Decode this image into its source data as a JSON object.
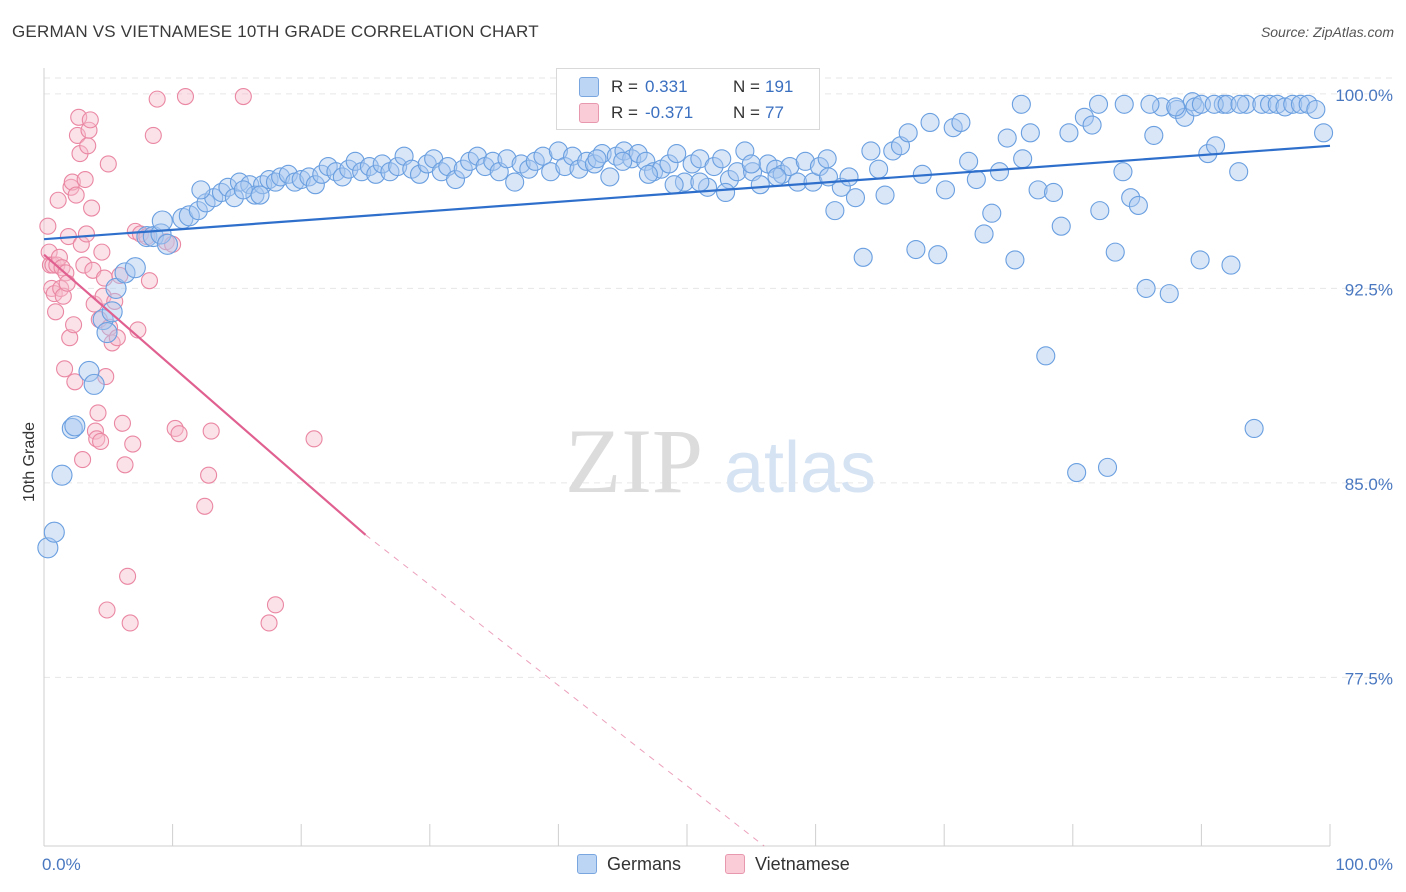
{
  "title": "GERMAN VS VIETNAMESE 10TH GRADE CORRELATION CHART",
  "source": "Source: ZipAtlas.com",
  "watermark": {
    "zip": "ZIP",
    "atlas": "atlas"
  },
  "legend": {
    "rows": [
      {
        "r_label": "R =",
        "r_value": "0.331",
        "n_label": "N =",
        "n_value": "191"
      },
      {
        "r_label": "R =",
        "r_value": "-0.371",
        "n_label": "N =",
        "n_value": "77"
      }
    ]
  },
  "bottom_legend": [
    {
      "label": "Germans"
    },
    {
      "label": "Vietnamese"
    }
  ],
  "colors": {
    "germans_fill": "#a9c8f0",
    "germans_stroke": "#6a9fe0",
    "germans_line": "#2f6fcc",
    "viet_fill": "#f6bccb",
    "viet_stroke": "#ea87a3",
    "viet_line": "#e06090",
    "grid": "#e6e6e6",
    "tick_text": "#4a78c0"
  },
  "chart_data": {
    "type": "scatter",
    "title": "GERMAN VS VIETNAMESE 10TH GRADE CORRELATION CHART",
    "xlabel": "",
    "ylabel": "10th Grade",
    "xlim": [
      0,
      100
    ],
    "ylim": [
      71,
      101
    ],
    "x_tick_labels": [
      "0.0%",
      "100.0%"
    ],
    "y_ticks": [
      77.5,
      85.0,
      92.5,
      100.0
    ],
    "y_tick_labels": [
      "77.5%",
      "85.0%",
      "92.5%",
      "100.0%"
    ],
    "grid": true,
    "series": [
      {
        "name": "Germans",
        "r": 0.331,
        "n": 191,
        "trend": {
          "x": [
            0,
            100
          ],
          "y": [
            94.4,
            98.0
          ]
        },
        "points": [
          [
            0.3,
            82.5
          ],
          [
            0.8,
            83.1
          ],
          [
            1.4,
            85.3
          ],
          [
            2.2,
            87.1
          ],
          [
            2.4,
            87.2
          ],
          [
            3.5,
            89.3
          ],
          [
            3.9,
            88.8
          ],
          [
            4.6,
            91.3
          ],
          [
            4.9,
            90.8
          ],
          [
            5.6,
            92.5
          ],
          [
            6.3,
            93.1
          ],
          [
            7.1,
            93.3
          ],
          [
            5.3,
            91.6
          ],
          [
            8.0,
            94.5
          ],
          [
            8.5,
            94.5
          ],
          [
            9.1,
            94.6
          ],
          [
            9.6,
            94.2
          ],
          [
            9.2,
            95.1
          ],
          [
            10.8,
            95.2
          ],
          [
            11.3,
            95.3
          ],
          [
            12.0,
            95.5
          ],
          [
            12.6,
            95.8
          ],
          [
            13.2,
            96.0
          ],
          [
            13.8,
            96.2
          ],
          [
            14.3,
            96.4
          ],
          [
            14.8,
            96.0
          ],
          [
            15.2,
            96.6
          ],
          [
            16.0,
            96.5
          ],
          [
            16.4,
            96.1
          ],
          [
            17.0,
            96.5
          ],
          [
            17.5,
            96.7
          ],
          [
            18.0,
            96.6
          ],
          [
            18.4,
            96.8
          ],
          [
            19.0,
            96.9
          ],
          [
            19.5,
            96.6
          ],
          [
            20.0,
            96.7
          ],
          [
            20.6,
            96.8
          ],
          [
            21.1,
            96.5
          ],
          [
            21.6,
            96.9
          ],
          [
            22.1,
            97.2
          ],
          [
            22.7,
            97.0
          ],
          [
            23.2,
            96.8
          ],
          [
            23.7,
            97.1
          ],
          [
            24.2,
            97.4
          ],
          [
            24.7,
            97.0
          ],
          [
            25.3,
            97.2
          ],
          [
            25.8,
            96.9
          ],
          [
            26.3,
            97.3
          ],
          [
            26.9,
            97.0
          ],
          [
            27.5,
            97.2
          ],
          [
            28.0,
            97.6
          ],
          [
            28.6,
            97.1
          ],
          [
            29.2,
            96.9
          ],
          [
            29.8,
            97.3
          ],
          [
            30.3,
            97.5
          ],
          [
            30.9,
            97.0
          ],
          [
            31.4,
            97.2
          ],
          [
            32.0,
            96.7
          ],
          [
            32.6,
            97.1
          ],
          [
            33.1,
            97.4
          ],
          [
            33.7,
            97.6
          ],
          [
            34.3,
            97.2
          ],
          [
            34.9,
            97.4
          ],
          [
            35.4,
            97.0
          ],
          [
            36.0,
            97.5
          ],
          [
            36.6,
            96.6
          ],
          [
            37.1,
            97.3
          ],
          [
            37.7,
            97.1
          ],
          [
            38.2,
            97.4
          ],
          [
            38.8,
            97.6
          ],
          [
            39.4,
            97.0
          ],
          [
            40.0,
            97.8
          ],
          [
            40.5,
            97.2
          ],
          [
            41.1,
            97.6
          ],
          [
            41.6,
            97.1
          ],
          [
            42.2,
            97.4
          ],
          [
            42.8,
            97.3
          ],
          [
            43.4,
            97.7
          ],
          [
            44.0,
            96.8
          ],
          [
            44.5,
            97.6
          ],
          [
            45.1,
            97.8
          ],
          [
            45.7,
            97.5
          ],
          [
            46.2,
            97.7
          ],
          [
            46.8,
            97.4
          ],
          [
            47.4,
            97.0
          ],
          [
            48.0,
            97.1
          ],
          [
            48.6,
            97.3
          ],
          [
            49.2,
            97.7
          ],
          [
            49.8,
            96.6
          ],
          [
            50.4,
            97.3
          ],
          [
            51.0,
            97.5
          ],
          [
            51.6,
            96.4
          ],
          [
            52.1,
            97.2
          ],
          [
            52.7,
            97.5
          ],
          [
            53.3,
            96.7
          ],
          [
            53.9,
            97.0
          ],
          [
            54.5,
            97.8
          ],
          [
            55.1,
            97.0
          ],
          [
            55.7,
            96.5
          ],
          [
            56.3,
            97.3
          ],
          [
            56.9,
            97.1
          ],
          [
            57.4,
            96.9
          ],
          [
            58.0,
            97.2
          ],
          [
            58.6,
            96.6
          ],
          [
            59.2,
            97.4
          ],
          [
            59.8,
            96.6
          ],
          [
            60.3,
            97.2
          ],
          [
            60.9,
            97.5
          ],
          [
            61.5,
            95.5
          ],
          [
            62.0,
            96.4
          ],
          [
            62.6,
            96.8
          ],
          [
            63.1,
            96.0
          ],
          [
            63.7,
            93.7
          ],
          [
            64.3,
            97.8
          ],
          [
            64.9,
            97.1
          ],
          [
            65.4,
            96.1
          ],
          [
            66.0,
            97.8
          ],
          [
            66.6,
            98.0
          ],
          [
            67.2,
            98.5
          ],
          [
            67.8,
            94.0
          ],
          [
            68.3,
            96.9
          ],
          [
            68.9,
            98.9
          ],
          [
            69.5,
            93.8
          ],
          [
            70.1,
            96.3
          ],
          [
            70.7,
            98.7
          ],
          [
            71.3,
            98.9
          ],
          [
            71.9,
            97.4
          ],
          [
            72.5,
            96.7
          ],
          [
            73.1,
            94.6
          ],
          [
            73.7,
            95.4
          ],
          [
            74.3,
            97.0
          ],
          [
            74.9,
            98.3
          ],
          [
            75.5,
            93.6
          ],
          [
            76.1,
            97.5
          ],
          [
            76.7,
            98.5
          ],
          [
            77.3,
            96.3
          ],
          [
            77.9,
            89.9
          ],
          [
            78.5,
            96.2
          ],
          [
            79.1,
            94.9
          ],
          [
            79.7,
            98.5
          ],
          [
            80.3,
            85.4
          ],
          [
            80.9,
            99.1
          ],
          [
            81.5,
            98.8
          ],
          [
            82.1,
            95.5
          ],
          [
            82.7,
            85.6
          ],
          [
            83.3,
            93.9
          ],
          [
            83.9,
            97.0
          ],
          [
            84.5,
            96.0
          ],
          [
            85.1,
            95.7
          ],
          [
            85.7,
            92.5
          ],
          [
            86.3,
            98.4
          ],
          [
            86.9,
            99.5
          ],
          [
            87.5,
            92.3
          ],
          [
            88.1,
            99.4
          ],
          [
            88.7,
            99.1
          ],
          [
            89.3,
            99.7
          ],
          [
            89.9,
            93.6
          ],
          [
            90.5,
            97.7
          ],
          [
            91.1,
            98.0
          ],
          [
            91.7,
            99.6
          ],
          [
            92.3,
            93.4
          ],
          [
            92.9,
            97.0
          ],
          [
            93.5,
            99.6
          ],
          [
            94.1,
            87.1
          ],
          [
            94.7,
            99.6
          ],
          [
            95.3,
            99.6
          ],
          [
            95.9,
            99.6
          ],
          [
            96.5,
            99.5
          ],
          [
            97.1,
            99.6
          ],
          [
            97.7,
            99.6
          ],
          [
            98.3,
            99.6
          ],
          [
            98.9,
            99.4
          ],
          [
            99.5,
            98.5
          ],
          [
            88.0,
            99.5
          ],
          [
            89.5,
            99.5
          ],
          [
            90.0,
            99.6
          ],
          [
            91.0,
            99.6
          ],
          [
            92.0,
            99.6
          ],
          [
            93.0,
            99.6
          ],
          [
            84.0,
            99.6
          ],
          [
            86.0,
            99.6
          ],
          [
            82.0,
            99.6
          ],
          [
            76.0,
            99.6
          ],
          [
            61.0,
            96.8
          ],
          [
            57.0,
            96.8
          ],
          [
            55.0,
            97.3
          ],
          [
            53.0,
            96.2
          ],
          [
            51.0,
            96.6
          ],
          [
            49.0,
            96.5
          ],
          [
            47.0,
            96.9
          ],
          [
            45.0,
            97.4
          ],
          [
            43.0,
            97.5
          ],
          [
            15.5,
            96.3
          ],
          [
            16.8,
            96.1
          ],
          [
            12.2,
            96.3
          ]
        ]
      },
      {
        "name": "Vietnamese",
        "r": -0.371,
        "n": 77,
        "trend": {
          "x": [
            0,
            25
          ],
          "y": [
            93.8,
            83.0
          ],
          "dashed_to": {
            "x": 56,
            "y": 71
          }
        },
        "points": [
          [
            0.3,
            94.9
          ],
          [
            0.4,
            93.9
          ],
          [
            0.5,
            93.4
          ],
          [
            0.6,
            92.5
          ],
          [
            0.7,
            93.4
          ],
          [
            0.8,
            92.3
          ],
          [
            0.9,
            91.6
          ],
          [
            1.0,
            93.4
          ],
          [
            1.1,
            95.9
          ],
          [
            1.2,
            93.7
          ],
          [
            1.3,
            92.5
          ],
          [
            1.4,
            93.3
          ],
          [
            1.5,
            92.2
          ],
          [
            1.6,
            89.4
          ],
          [
            1.7,
            93.1
          ],
          [
            1.8,
            92.7
          ],
          [
            1.9,
            94.5
          ],
          [
            2.0,
            90.6
          ],
          [
            2.1,
            96.4
          ],
          [
            2.2,
            96.6
          ],
          [
            2.3,
            91.1
          ],
          [
            2.4,
            88.9
          ],
          [
            2.5,
            96.1
          ],
          [
            2.6,
            98.4
          ],
          [
            2.7,
            99.1
          ],
          [
            2.8,
            97.7
          ],
          [
            2.9,
            94.2
          ],
          [
            3.0,
            85.9
          ],
          [
            3.1,
            93.4
          ],
          [
            3.2,
            96.7
          ],
          [
            3.3,
            94.6
          ],
          [
            3.4,
            98.0
          ],
          [
            3.5,
            98.6
          ],
          [
            3.6,
            99.0
          ],
          [
            3.7,
            95.6
          ],
          [
            3.8,
            93.2
          ],
          [
            3.9,
            91.9
          ],
          [
            4.0,
            87.0
          ],
          [
            4.1,
            86.7
          ],
          [
            4.2,
            87.7
          ],
          [
            4.3,
            91.3
          ],
          [
            4.4,
            86.6
          ],
          [
            4.5,
            93.9
          ],
          [
            4.6,
            92.2
          ],
          [
            4.7,
            92.9
          ],
          [
            4.8,
            89.1
          ],
          [
            4.9,
            80.1
          ],
          [
            5.0,
            97.3
          ],
          [
            5.1,
            91.0
          ],
          [
            5.3,
            90.4
          ],
          [
            5.5,
            92.0
          ],
          [
            5.7,
            90.6
          ],
          [
            5.9,
            93.0
          ],
          [
            6.1,
            87.3
          ],
          [
            6.3,
            85.7
          ],
          [
            6.5,
            81.4
          ],
          [
            6.7,
            79.6
          ],
          [
            6.9,
            86.5
          ],
          [
            7.1,
            94.7
          ],
          [
            7.3,
            90.9
          ],
          [
            7.5,
            94.6
          ],
          [
            8.0,
            94.5
          ],
          [
            8.2,
            92.8
          ],
          [
            8.5,
            98.4
          ],
          [
            8.8,
            99.8
          ],
          [
            9.5,
            94.3
          ],
          [
            10.0,
            94.2
          ],
          [
            10.2,
            87.1
          ],
          [
            10.5,
            86.9
          ],
          [
            11.0,
            99.9
          ],
          [
            12.5,
            84.1
          ],
          [
            12.8,
            85.3
          ],
          [
            15.5,
            99.9
          ],
          [
            17.5,
            79.6
          ],
          [
            18.0,
            80.3
          ],
          [
            21.0,
            86.7
          ],
          [
            13.0,
            87.0
          ]
        ]
      }
    ]
  }
}
